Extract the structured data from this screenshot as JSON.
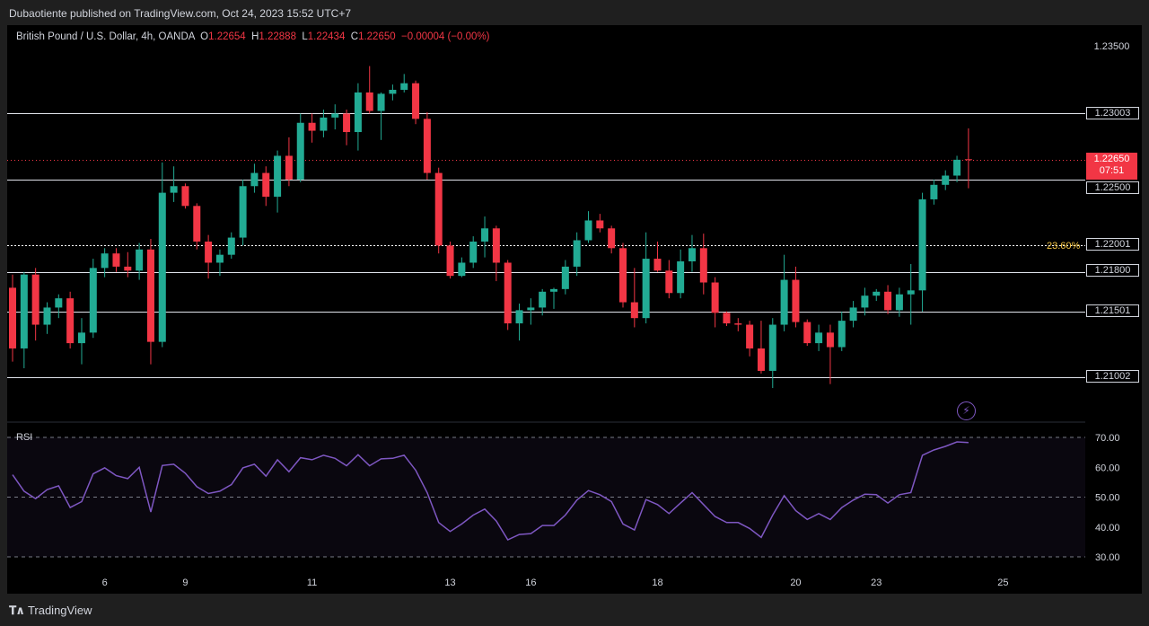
{
  "header": {
    "published": "Dubaotiente published on TradingView.com, Oct 24, 2023 15:52 UTC+7"
  },
  "legend": {
    "symbol": "British Pound / U.S. Dollar, 4h, OANDA",
    "o_label": "O",
    "o": "1.22654",
    "h_label": "H",
    "h": "1.22888",
    "l_label": "L",
    "l": "1.22434",
    "c_label": "C",
    "c": "1.22650",
    "change": "−0.00004 (−0.00%)"
  },
  "price_scale": {
    "top_label": "1.23500",
    "levels": [
      "1.23003",
      "1.22500",
      "1.22001",
      "1.21800",
      "1.21501",
      "1.21002"
    ],
    "last_price": "1.22650",
    "countdown": "07:51",
    "fib_label": "23.60%"
  },
  "rsi": {
    "label": "RSI",
    "ticks": [
      "70.00",
      "60.00",
      "50.00",
      "40.00",
      "30.00"
    ]
  },
  "time_axis": {
    "labels": [
      "6",
      "9",
      "11",
      "13",
      "16",
      "18",
      "20",
      "23",
      "25"
    ]
  },
  "footer": {
    "brand": "TradingView"
  },
  "colors": {
    "up": "#22ab94",
    "down": "#f23645",
    "rsi": "#7e57c2",
    "fib": "#f5c542"
  },
  "chart_data": [
    {
      "type": "candlestick",
      "title": "British Pound / U.S. Dollar, 4h, OANDA",
      "ylim": [
        1.207,
        1.2365
      ],
      "horizontal_levels": [
        1.23003,
        1.225,
        1.22001,
        1.218,
        1.21501,
        1.21002
      ],
      "last_price": 1.2265,
      "ohlc": [
        [
          1.2168,
          1.2178,
          1.2112,
          1.2122
        ],
        [
          1.2122,
          1.218,
          1.2107,
          1.2178
        ],
        [
          1.2178,
          1.2183,
          1.2128,
          1.214
        ],
        [
          1.214,
          1.2157,
          1.2133,
          1.2153
        ],
        [
          1.2153,
          1.2163,
          1.2145,
          1.216
        ],
        [
          1.216,
          1.2165,
          1.2122,
          1.2126
        ],
        [
          1.2126,
          1.2145,
          1.211,
          1.2134
        ],
        [
          1.2134,
          1.219,
          1.213,
          1.2183
        ],
        [
          1.2183,
          1.2198,
          1.2176,
          1.2194
        ],
        [
          1.2194,
          1.2198,
          1.218,
          1.2184
        ],
        [
          1.2184,
          1.2195,
          1.2176,
          1.2181
        ],
        [
          1.2181,
          1.2202,
          1.2174,
          1.2197
        ],
        [
          1.2197,
          1.2205,
          1.211,
          1.2127
        ],
        [
          1.2127,
          1.2263,
          1.2123,
          1.224
        ],
        [
          1.224,
          1.226,
          1.2233,
          1.2245
        ],
        [
          1.2245,
          1.2247,
          1.2228,
          1.223
        ],
        [
          1.223,
          1.2232,
          1.2197,
          1.2203
        ],
        [
          1.2203,
          1.2208,
          1.2175,
          1.2187
        ],
        [
          1.2187,
          1.2197,
          1.2177,
          1.2193
        ],
        [
          1.2193,
          1.221,
          1.219,
          1.2206
        ],
        [
          1.2206,
          1.225,
          1.22,
          1.2245
        ],
        [
          1.2245,
          1.2262,
          1.224,
          1.2255
        ],
        [
          1.2255,
          1.226,
          1.223,
          1.2237
        ],
        [
          1.2237,
          1.2272,
          1.2225,
          1.2268
        ],
        [
          1.2268,
          1.2282,
          1.2245,
          1.225
        ],
        [
          1.225,
          1.23,
          1.2248,
          1.2293
        ],
        [
          1.2293,
          1.23,
          1.2278,
          1.2287
        ],
        [
          1.2287,
          1.2303,
          1.2282,
          1.2297
        ],
        [
          1.2297,
          1.2307,
          1.2288,
          1.23
        ],
        [
          1.23,
          1.2303,
          1.2276,
          1.2286
        ],
        [
          1.2286,
          1.2323,
          1.2272,
          1.2316
        ],
        [
          1.2316,
          1.2336,
          1.23,
          1.2302
        ],
        [
          1.2302,
          1.2316,
          1.228,
          1.2315
        ],
        [
          1.2315,
          1.2322,
          1.231,
          1.2318
        ],
        [
          1.2318,
          1.233,
          1.2316,
          1.2323
        ],
        [
          1.2323,
          1.2325,
          1.2292,
          1.2296
        ],
        [
          1.2296,
          1.2301,
          1.225,
          1.2255
        ],
        [
          1.2255,
          1.2259,
          1.2194,
          1.22
        ],
        [
          1.22,
          1.2203,
          1.2175,
          1.2177
        ],
        [
          1.2177,
          1.2191,
          1.2176,
          1.2187
        ],
        [
          1.2187,
          1.2207,
          1.2183,
          1.2203
        ],
        [
          1.2203,
          1.2222,
          1.2191,
          1.2213
        ],
        [
          1.2213,
          1.2215,
          1.2173,
          1.2187
        ],
        [
          1.2187,
          1.2189,
          1.2136,
          1.2141
        ],
        [
          1.2141,
          1.2156,
          1.2128,
          1.2151
        ],
        [
          1.2151,
          1.216,
          1.214,
          1.2153
        ],
        [
          1.2153,
          1.2167,
          1.2147,
          1.2165
        ],
        [
          1.2165,
          1.2168,
          1.2152,
          1.2167
        ],
        [
          1.2167,
          1.2189,
          1.2163,
          1.2184
        ],
        [
          1.2184,
          1.221,
          1.2177,
          1.2204
        ],
        [
          1.2204,
          1.2226,
          1.2202,
          1.2219
        ],
        [
          1.2219,
          1.2224,
          1.221,
          1.2213
        ],
        [
          1.2213,
          1.2215,
          1.2194,
          1.2198
        ],
        [
          1.2198,
          1.2202,
          1.2153,
          1.2157
        ],
        [
          1.2157,
          1.2183,
          1.2138,
          1.2145
        ],
        [
          1.2145,
          1.221,
          1.2141,
          1.219
        ],
        [
          1.219,
          1.2203,
          1.218,
          1.2181
        ],
        [
          1.2181,
          1.2189,
          1.216,
          1.2164
        ],
        [
          1.2164,
          1.2197,
          1.216,
          1.2188
        ],
        [
          1.2188,
          1.2208,
          1.218,
          1.2198
        ],
        [
          1.2198,
          1.2209,
          1.2163,
          1.2172
        ],
        [
          1.2172,
          1.2176,
          1.2138,
          1.2149
        ],
        [
          1.2149,
          1.215,
          1.2139,
          1.2141
        ],
        [
          1.2141,
          1.2145,
          1.2135,
          1.214
        ],
        [
          1.214,
          1.2143,
          1.2116,
          1.2122
        ],
        [
          1.2122,
          1.2143,
          1.2103,
          1.2105
        ],
        [
          1.2105,
          1.2145,
          1.2092,
          1.214
        ],
        [
          1.214,
          1.2193,
          1.2135,
          1.2174
        ],
        [
          1.2174,
          1.2184,
          1.2138,
          1.2142
        ],
        [
          1.2142,
          1.2144,
          1.2124,
          1.2126
        ],
        [
          1.2126,
          1.214,
          1.212,
          1.2134
        ],
        [
          1.2134,
          1.214,
          1.2095,
          1.2123
        ],
        [
          1.2123,
          1.215,
          1.212,
          1.2143
        ],
        [
          1.2143,
          1.2158,
          1.2138,
          1.2153
        ],
        [
          1.2153,
          1.2168,
          1.2147,
          1.2162
        ],
        [
          1.2162,
          1.2167,
          1.2158,
          1.2165
        ],
        [
          1.2165,
          1.217,
          1.2148,
          1.2151
        ],
        [
          1.2151,
          1.2168,
          1.2146,
          1.2163
        ],
        [
          1.2163,
          1.2186,
          1.214,
          1.2166
        ],
        [
          1.2166,
          1.224,
          1.215,
          1.2235
        ],
        [
          1.2235,
          1.225,
          1.2231,
          1.2246
        ],
        [
          1.2246,
          1.2257,
          1.2242,
          1.2253
        ],
        [
          1.2253,
          1.2268,
          1.2248,
          1.2265
        ],
        [
          1.22654,
          1.22888,
          1.22434,
          1.2265
        ]
      ]
    },
    {
      "type": "line",
      "title": "RSI",
      "ylim": [
        27,
        73
      ],
      "bands": [
        70,
        50,
        30
      ],
      "series": [
        {
          "values": [
            57.5,
            52,
            49.5,
            52.5,
            53.8,
            46.5,
            48.5,
            57.8,
            59.8,
            57.2,
            56.2,
            60,
            45,
            60.6,
            61,
            58,
            53.5,
            51.2,
            52,
            54.2,
            59.8,
            61,
            57,
            62.5,
            58.5,
            63.2,
            62.5,
            64,
            63,
            60.5,
            64.2,
            60.5,
            62.8,
            63,
            64,
            59,
            51.5,
            41.5,
            38.5,
            41,
            44,
            46,
            42,
            35.7,
            37.5,
            37.8,
            40.5,
            40.5,
            44,
            49,
            52.2,
            50.8,
            48.5,
            41,
            39,
            49.2,
            47.5,
            44.5,
            48,
            51.5,
            47.5,
            43.5,
            41.5,
            41.5,
            39.5,
            36.5,
            44,
            50.5,
            45.5,
            42.5,
            44.5,
            42.5,
            46.5,
            49,
            51,
            50.8,
            48,
            50.8,
            51.5,
            64,
            65.8,
            67,
            68.5,
            68.3
          ]
        }
      ]
    }
  ]
}
